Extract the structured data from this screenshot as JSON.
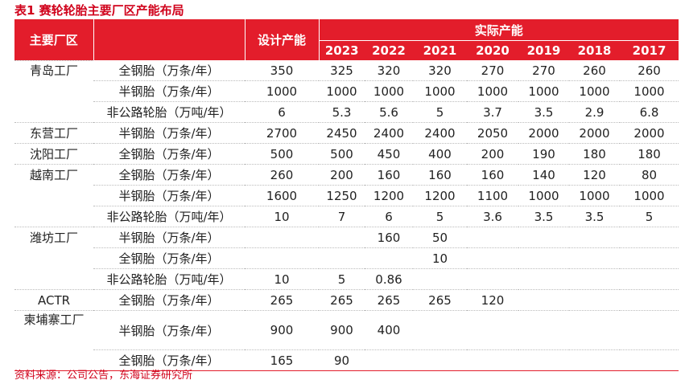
{
  "title": "表1  赛轮轮胎主要厂区产能布局",
  "headers": {
    "plant": "主要厂区",
    "design_capacity": "设计产能",
    "actual_capacity": "实际产能",
    "years": [
      "2023",
      "2022",
      "2021",
      "2020",
      "2019",
      "2018",
      "2017"
    ]
  },
  "rows": [
    {
      "plant": "青岛工厂",
      "product": "全钢胎（万条/年）",
      "design": "350",
      "values": [
        "325",
        "320",
        "320",
        "270",
        "270",
        "260",
        "260"
      ]
    },
    {
      "plant": "",
      "product": "半钢胎（万条/年）",
      "design": "1000",
      "values": [
        "1000",
        "1000",
        "1000",
        "1000",
        "1000",
        "1000",
        "1000"
      ]
    },
    {
      "plant": "",
      "product": "非公路轮胎（万吨/年）",
      "design": "6",
      "values": [
        "5.3",
        "5.6",
        "5",
        "3.7",
        "3.5",
        "2.9",
        "6.8"
      ]
    },
    {
      "plant": "东营工厂",
      "product": "半钢胎（万条/年）",
      "design": "2700",
      "values": [
        "2450",
        "2400",
        "2400",
        "2050",
        "2000",
        "2000",
        "2000"
      ]
    },
    {
      "plant": "沈阳工厂",
      "product": "全钢胎（万条/年）",
      "design": "500",
      "values": [
        "500",
        "450",
        "400",
        "200",
        "190",
        "180",
        "180"
      ]
    },
    {
      "plant": "越南工厂",
      "product": "全钢胎（万条/年）",
      "design": "260",
      "values": [
        "200",
        "160",
        "160",
        "160",
        "140",
        "120",
        "80"
      ]
    },
    {
      "plant": "",
      "product": "半钢胎（万条/年）",
      "design": "1600",
      "values": [
        "1250",
        "1200",
        "1200",
        "1100",
        "1000",
        "1000",
        "1000"
      ]
    },
    {
      "plant": "",
      "product": "非公路轮胎（万吨/年）",
      "design": "10",
      "values": [
        "7",
        "6",
        "5",
        "3.6",
        "3.5",
        "3.5",
        "5"
      ]
    },
    {
      "plant": "潍坊工厂",
      "product": "半钢胎（万条/年）",
      "design": "",
      "values": [
        "",
        "160",
        "50",
        "",
        "",
        "",
        ""
      ]
    },
    {
      "plant": "",
      "product": "全钢胎（万条/年）",
      "design": "",
      "values": [
        "",
        "",
        "10",
        "",
        "",
        "",
        ""
      ]
    },
    {
      "plant": "",
      "product": "非公路轮胎（万吨/年）",
      "design": "10",
      "values": [
        "5",
        "0.86",
        "",
        "",
        "",
        "",
        ""
      ]
    },
    {
      "plant": "ACTR",
      "product": "全钢胎（万条/年）",
      "design": "265",
      "values": [
        "265",
        "265",
        "265",
        "120",
        "",
        "",
        ""
      ]
    },
    {
      "plant": "柬埔寨工厂",
      "product": "半钢胎（万条/年）",
      "design": "900",
      "values": [
        "900",
        "400",
        "",
        "",
        "",
        "",
        ""
      ]
    },
    {
      "plant": "",
      "product": "全钢胎（万条/年）",
      "design": "165",
      "values": [
        "90",
        "",
        "",
        "",
        "",
        "",
        ""
      ]
    }
  ],
  "source": "资料来源：公司公告，东海证券研究所",
  "colors": {
    "accent": "#e31d2b",
    "title": "#d0021b"
  }
}
